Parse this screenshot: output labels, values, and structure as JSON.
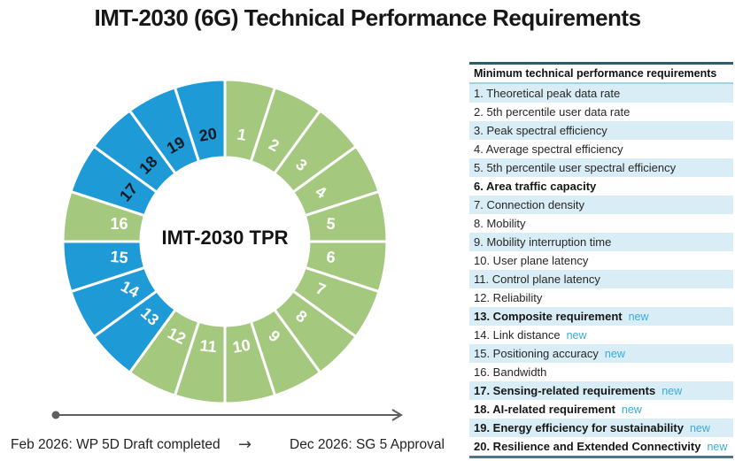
{
  "title": "IMT-2030 (6G) Technical Performance Requirements",
  "donut": {
    "center_label": "IMT-2030 TPR",
    "colors": {
      "green": "#a5c87f",
      "blue": "#1e9ad6",
      "num_light": "#ffffff",
      "num_dark": "#111a22"
    },
    "segments": [
      {
        "num": "1",
        "color": "green",
        "t": "light"
      },
      {
        "num": "2",
        "color": "green",
        "t": "light"
      },
      {
        "num": "3",
        "color": "green",
        "t": "light"
      },
      {
        "num": "4",
        "color": "green",
        "t": "light"
      },
      {
        "num": "5",
        "color": "green",
        "t": "light"
      },
      {
        "num": "6",
        "color": "green",
        "t": "light"
      },
      {
        "num": "7",
        "color": "green",
        "t": "light"
      },
      {
        "num": "8",
        "color": "green",
        "t": "light"
      },
      {
        "num": "9",
        "color": "green",
        "t": "light"
      },
      {
        "num": "10",
        "color": "green",
        "t": "light"
      },
      {
        "num": "11",
        "color": "green",
        "t": "light"
      },
      {
        "num": "12",
        "color": "green",
        "t": "light"
      },
      {
        "num": "13",
        "color": "blue",
        "t": "light"
      },
      {
        "num": "14",
        "color": "blue",
        "t": "light"
      },
      {
        "num": "15",
        "color": "blue",
        "t": "light"
      },
      {
        "num": "16",
        "color": "green",
        "t": "light"
      },
      {
        "num": "17",
        "color": "blue",
        "t": "dark"
      },
      {
        "num": "18",
        "color": "blue",
        "t": "dark"
      },
      {
        "num": "19",
        "color": "blue",
        "t": "dark"
      },
      {
        "num": "20",
        "color": "blue",
        "t": "dark"
      }
    ]
  },
  "requirements": {
    "header": "Minimum technical performance requirements",
    "new_label": "new",
    "items": [
      {
        "text": "1. Theoretical peak data rate",
        "bold": false,
        "new": false
      },
      {
        "text": "2. 5th percentile user data rate",
        "bold": false,
        "new": false
      },
      {
        "text": "3. Peak spectral efficiency",
        "bold": false,
        "new": false
      },
      {
        "text": "4. Average spectral efficiency",
        "bold": false,
        "new": false
      },
      {
        "text": "5. 5th percentile user spectral efficiency",
        "bold": false,
        "new": false
      },
      {
        "text": "6. Area traffic capacity",
        "bold": true,
        "new": false
      },
      {
        "text": "7. Connection density",
        "bold": false,
        "new": false
      },
      {
        "text": "8. Mobility",
        "bold": false,
        "new": false
      },
      {
        "text": "9. Mobility interruption time",
        "bold": false,
        "new": false
      },
      {
        "text": "10. User plane latency",
        "bold": false,
        "new": false
      },
      {
        "text": "11. Control plane latency",
        "bold": false,
        "new": false
      },
      {
        "text": "12. Reliability",
        "bold": false,
        "new": false
      },
      {
        "text": "13. Composite requirement",
        "bold": true,
        "new": true
      },
      {
        "text": "14. Link distance",
        "bold": false,
        "new": true
      },
      {
        "text": "15. Positioning accuracy",
        "bold": false,
        "new": true
      },
      {
        "text": "16. Bandwidth",
        "bold": false,
        "new": false
      },
      {
        "text": "17. Sensing-related requirements",
        "bold": true,
        "new": true
      },
      {
        "text": "18. AI-related requirement",
        "bold": true,
        "new": true
      },
      {
        "text": "19. Energy efficiency for sustainability",
        "bold": true,
        "new": true
      },
      {
        "text": "20. Resilience and Extended Connectivity",
        "bold": true,
        "new": true
      }
    ]
  },
  "timeline": {
    "start_label": "Feb 2026: WP 5D Draft completed",
    "arrow_glyph": "→",
    "end_label": "Dec 2026: SG 5 Approval"
  }
}
